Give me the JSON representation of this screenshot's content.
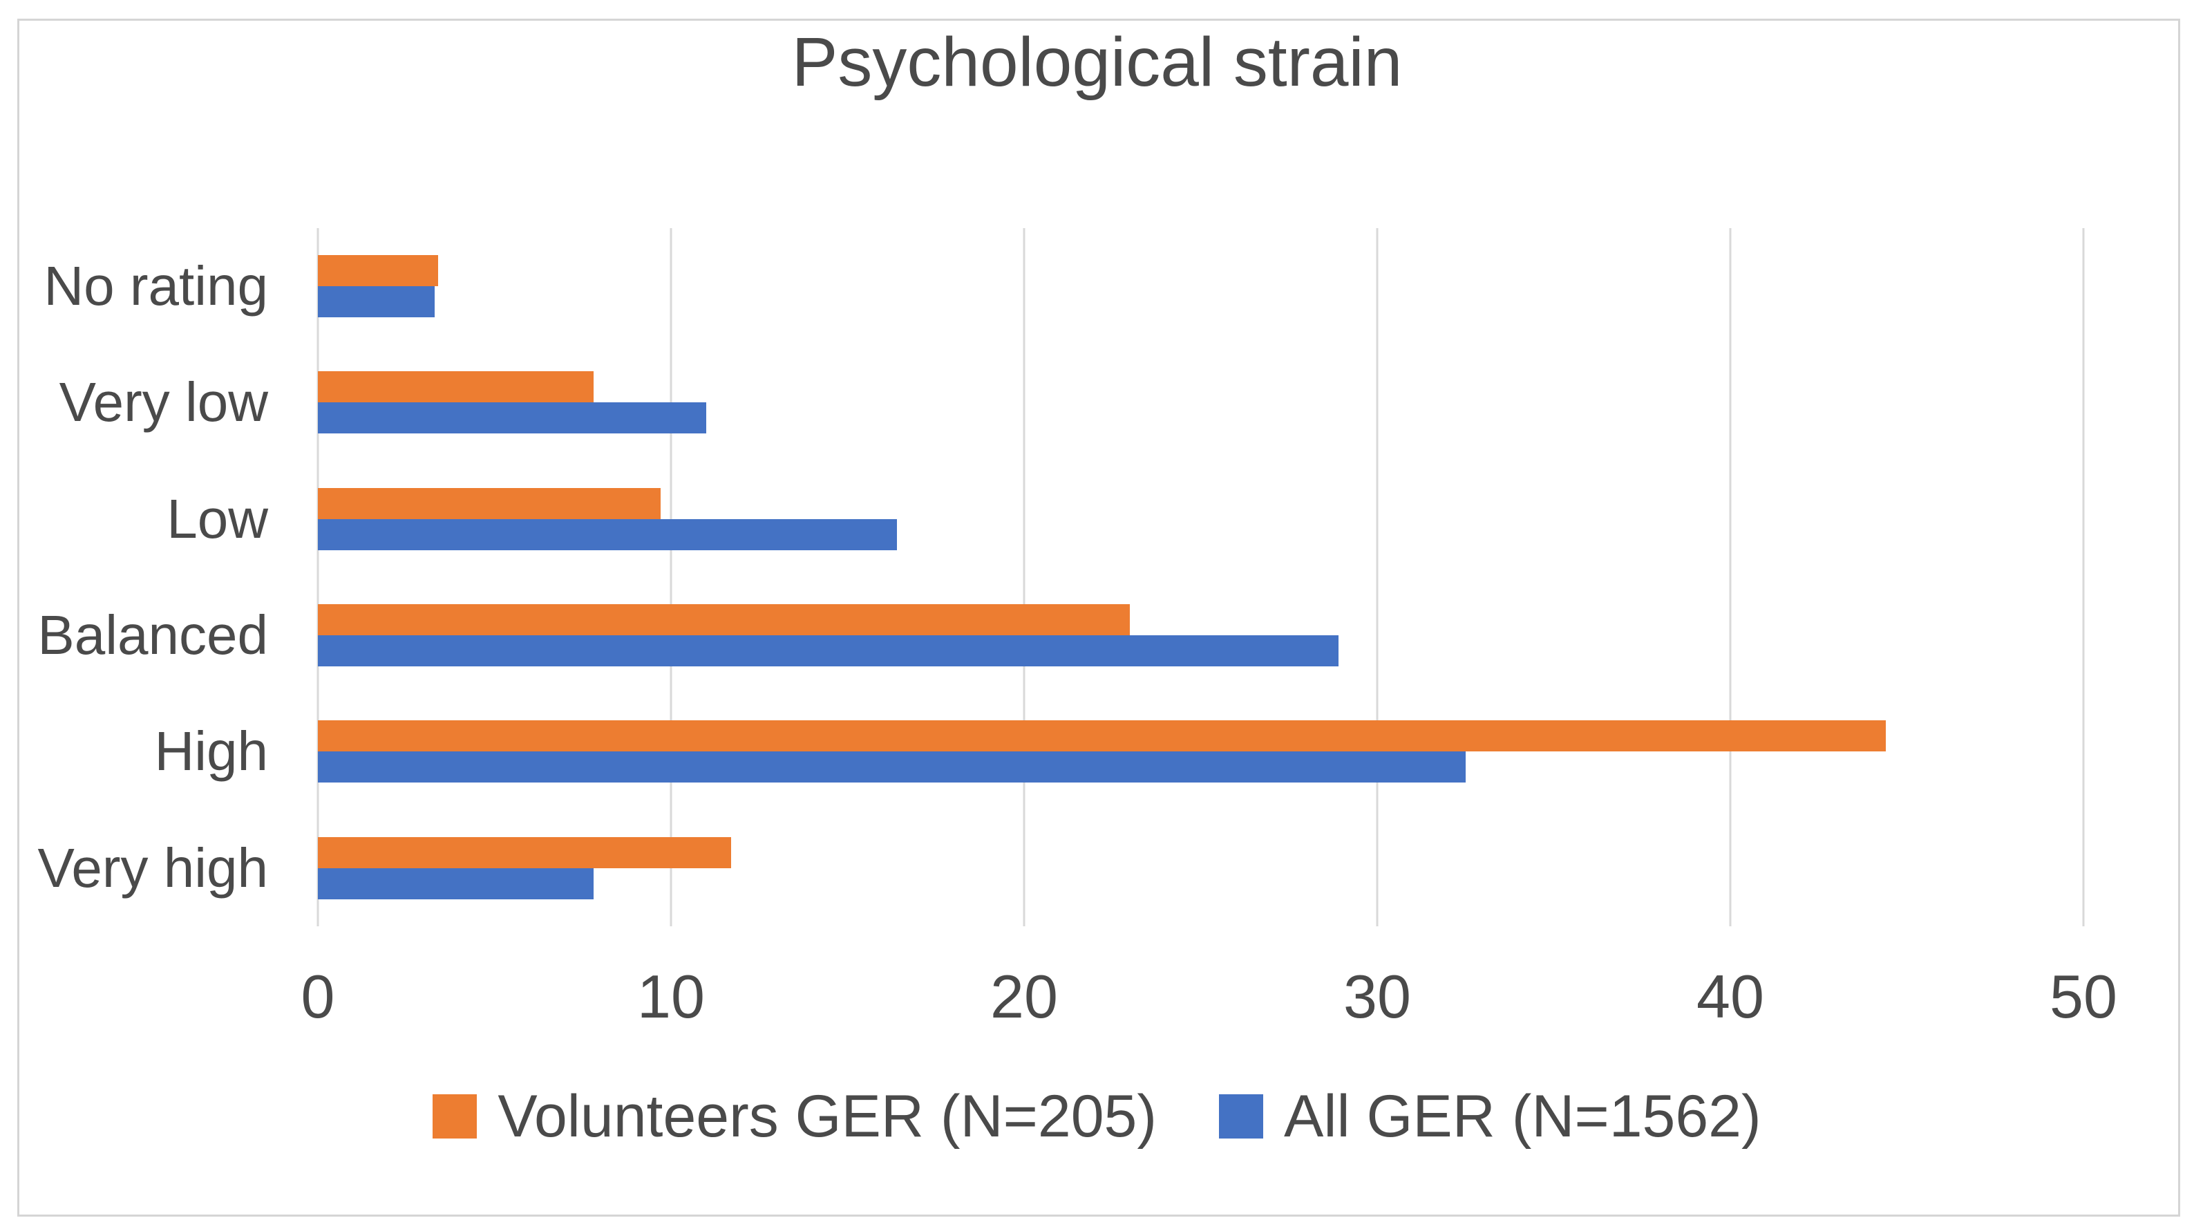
{
  "chart_data": {
    "type": "bar",
    "orientation": "horizontal",
    "title": "Psychological strain",
    "categories": [
      "No rating",
      "Very low",
      "Low",
      "Balanced",
      "High",
      "Very high"
    ],
    "series": [
      {
        "name": "Volunteers GER (N=205)",
        "color": "#ED7D31",
        "values": [
          3.4,
          7.8,
          9.7,
          23.0,
          44.4,
          11.7
        ]
      },
      {
        "name": "All GER (N=1562)",
        "color": "#4472C4",
        "values": [
          3.3,
          11.0,
          16.4,
          28.9,
          32.5,
          7.8
        ]
      }
    ],
    "xlabel": "",
    "ylabel": "",
    "xlim": [
      0,
      50
    ],
    "xticks": [
      0,
      10,
      20,
      30,
      40,
      50
    ],
    "grid": true,
    "legend_position": "bottom",
    "colors": {
      "text": "#4A4A4A",
      "gridline": "#D9D9D9",
      "frame_border": "#D5D5D5",
      "background": "#FFFFFF"
    }
  }
}
